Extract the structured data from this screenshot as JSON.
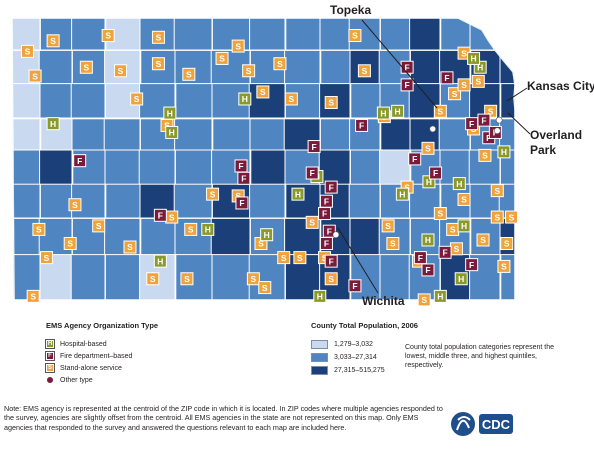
{
  "map": {
    "colors": {
      "low": "#c9daf0",
      "mid": "#4f86c2",
      "high": "#1b3f78",
      "border": "#ffffff",
      "hospital": "#8a9a2a",
      "fire": "#7b1b3c",
      "standalone": "#f0a33c",
      "other": "#7b1b3c"
    },
    "cities": {
      "topeka": "Topeka",
      "kansas_city": "Kansas City",
      "overland_park": "Overland Park",
      "wichita": "Wichita"
    },
    "markers": [
      {
        "t": "S",
        "lx": 10,
        "ly": 11
      },
      {
        "t": "S",
        "lx": 18,
        "ly": 25
      },
      {
        "t": "S",
        "lx": 37,
        "ly": 5
      },
      {
        "t": "S",
        "lx": 72,
        "ly": 20
      },
      {
        "t": "S",
        "lx": 95,
        "ly": 2
      },
      {
        "t": "S",
        "lx": 108,
        "ly": 22
      },
      {
        "t": "S",
        "lx": 148,
        "ly": 3
      },
      {
        "t": "S",
        "lx": 148,
        "ly": 18
      },
      {
        "t": "S",
        "lx": 125,
        "ly": 38
      },
      {
        "t": "S",
        "lx": 157,
        "ly": 53
      },
      {
        "t": "S",
        "lx": 180,
        "ly": 24
      },
      {
        "t": "S",
        "lx": 215,
        "ly": 15
      },
      {
        "t": "S",
        "lx": 232,
        "ly": 8
      },
      {
        "t": "S",
        "lx": 243,
        "ly": 22
      },
      {
        "t": "S",
        "lx": 258,
        "ly": 34
      },
      {
        "t": "S",
        "lx": 276,
        "ly": 18
      },
      {
        "t": "S",
        "lx": 288,
        "ly": 38
      },
      {
        "t": "S",
        "lx": 330,
        "ly": 40
      },
      {
        "t": "S",
        "lx": 355,
        "ly": 2
      },
      {
        "t": "S",
        "lx": 365,
        "ly": 22
      },
      {
        "t": "S",
        "lx": 386,
        "ly": 48
      },
      {
        "t": "S",
        "lx": 460,
        "ly": 35
      },
      {
        "t": "S",
        "lx": 470,
        "ly": 12
      },
      {
        "t": "S",
        "lx": 470,
        "ly": 30
      },
      {
        "t": "S",
        "lx": 432,
        "ly": 66
      },
      {
        "t": "S",
        "lx": 480,
        "ly": 55
      },
      {
        "t": "S",
        "lx": 492,
        "ly": 70
      },
      {
        "t": "S",
        "lx": 505,
        "ly": 90
      },
      {
        "t": "S",
        "lx": 505,
        "ly": 105
      },
      {
        "t": "S",
        "lx": 470,
        "ly": 95
      },
      {
        "t": "S",
        "lx": 458,
        "ly": 112
      },
      {
        "t": "S",
        "lx": 410,
        "ly": 88
      },
      {
        "t": "S",
        "lx": 445,
        "ly": 45
      },
      {
        "t": "S",
        "lx": 498,
        "ly": 45
      },
      {
        "t": "S",
        "lx": 485,
        "ly": 28
      },
      {
        "t": "S",
        "lx": 520,
        "ly": 105
      },
      {
        "t": "S",
        "lx": 515,
        "ly": 120
      },
      {
        "t": "S",
        "lx": 60,
        "ly": 98
      },
      {
        "t": "S",
        "lx": 85,
        "ly": 110
      },
      {
        "t": "S",
        "lx": 22,
        "ly": 112
      },
      {
        "t": "S",
        "lx": 30,
        "ly": 128
      },
      {
        "t": "S",
        "lx": 55,
        "ly": 120
      },
      {
        "t": "S",
        "lx": 118,
        "ly": 122
      },
      {
        "t": "S",
        "lx": 142,
        "ly": 140
      },
      {
        "t": "S",
        "lx": 162,
        "ly": 105
      },
      {
        "t": "S",
        "lx": 182,
        "ly": 112
      },
      {
        "t": "S",
        "lx": 205,
        "ly": 92
      },
      {
        "t": "S",
        "lx": 232,
        "ly": 93
      },
      {
        "t": "S",
        "lx": 256,
        "ly": 120
      },
      {
        "t": "S",
        "lx": 248,
        "ly": 140
      },
      {
        "t": "S",
        "lx": 280,
        "ly": 128
      },
      {
        "t": "S",
        "lx": 297,
        "ly": 128
      },
      {
        "t": "S",
        "lx": 310,
        "ly": 108
      },
      {
        "t": "S",
        "lx": 323,
        "ly": 128
      },
      {
        "t": "S",
        "lx": 330,
        "ly": 140
      },
      {
        "t": "S",
        "lx": 390,
        "ly": 110
      },
      {
        "t": "S",
        "lx": 422,
        "ly": 130
      },
      {
        "t": "S",
        "lx": 445,
        "ly": 103
      },
      {
        "t": "S",
        "lx": 462,
        "ly": 123
      },
      {
        "t": "S",
        "lx": 490,
        "ly": 118
      },
      {
        "t": "S",
        "lx": 512,
        "ly": 133
      },
      {
        "t": "S",
        "lx": 16,
        "ly": 150
      },
      {
        "t": "S",
        "lx": 178,
        "ly": 140
      },
      {
        "t": "S",
        "lx": 260,
        "ly": 145
      },
      {
        "t": "S",
        "lx": 395,
        "ly": 120
      },
      {
        "t": "S",
        "lx": 428,
        "ly": 152
      },
      {
        "t": "H",
        "lx": 37,
        "ly": 52
      },
      {
        "t": "H",
        "lx": 160,
        "ly": 46
      },
      {
        "t": "H",
        "lx": 162,
        "ly": 57
      },
      {
        "t": "H",
        "lx": 239,
        "ly": 38
      },
      {
        "t": "H",
        "lx": 262,
        "ly": 115
      },
      {
        "t": "H",
        "lx": 295,
        "ly": 92
      },
      {
        "t": "H",
        "lx": 315,
        "ly": 82
      },
      {
        "t": "H",
        "lx": 200,
        "ly": 112
      },
      {
        "t": "H",
        "lx": 385,
        "ly": 46
      },
      {
        "t": "H",
        "lx": 400,
        "ly": 45
      },
      {
        "t": "H",
        "lx": 433,
        "ly": 85
      },
      {
        "t": "H",
        "lx": 465,
        "ly": 86
      },
      {
        "t": "H",
        "lx": 487,
        "ly": 20
      },
      {
        "t": "H",
        "lx": 480,
        "ly": 15
      },
      {
        "t": "H",
        "lx": 512,
        "ly": 68
      },
      {
        "t": "H",
        "lx": 432,
        "ly": 118
      },
      {
        "t": "H",
        "lx": 467,
        "ly": 140
      },
      {
        "t": "H",
        "lx": 150,
        "ly": 130
      },
      {
        "t": "H",
        "lx": 318,
        "ly": 150
      },
      {
        "t": "H",
        "lx": 445,
        "ly": 150
      },
      {
        "t": "H",
        "lx": 405,
        "ly": 92
      },
      {
        "t": "H",
        "lx": 470,
        "ly": 110
      },
      {
        "t": "F",
        "lx": 65,
        "ly": 73
      },
      {
        "t": "F",
        "lx": 150,
        "ly": 104
      },
      {
        "t": "F",
        "lx": 238,
        "ly": 83
      },
      {
        "t": "F",
        "lx": 312,
        "ly": 65
      },
      {
        "t": "F",
        "lx": 310,
        "ly": 80
      },
      {
        "t": "F",
        "lx": 325,
        "ly": 96
      },
      {
        "t": "F",
        "lx": 323,
        "ly": 103
      },
      {
        "t": "F",
        "lx": 328,
        "ly": 113
      },
      {
        "t": "F",
        "lx": 325,
        "ly": 120
      },
      {
        "t": "F",
        "lx": 330,
        "ly": 130
      },
      {
        "t": "F",
        "lx": 355,
        "ly": 144
      },
      {
        "t": "F",
        "lx": 330,
        "ly": 88
      },
      {
        "t": "F",
        "lx": 362,
        "ly": 53
      },
      {
        "t": "F",
        "lx": 410,
        "ly": 20
      },
      {
        "t": "F",
        "lx": 418,
        "ly": 72
      },
      {
        "t": "F",
        "lx": 440,
        "ly": 80
      },
      {
        "t": "F",
        "lx": 478,
        "ly": 52
      },
      {
        "t": "F",
        "lx": 491,
        "ly": 50
      },
      {
        "t": "F",
        "lx": 496,
        "ly": 60
      },
      {
        "t": "F",
        "lx": 503,
        "ly": 57
      },
      {
        "t": "F",
        "lx": 452,
        "ly": 26
      },
      {
        "t": "F",
        "lx": 432,
        "ly": 135
      },
      {
        "t": "F",
        "lx": 450,
        "ly": 125
      },
      {
        "t": "F",
        "lx": 478,
        "ly": 132
      },
      {
        "t": "F",
        "lx": 410,
        "ly": 30
      },
      {
        "t": "F",
        "lx": 424,
        "ly": 128
      },
      {
        "t": "F",
        "lx": 235,
        "ly": 76
      },
      {
        "t": "F",
        "lx": 236,
        "ly": 97
      },
      {
        "t": "O",
        "lx": 437,
        "ly": 55
      },
      {
        "t": "O",
        "lx": 507,
        "ly": 50
      },
      {
        "t": "O",
        "lx": 505,
        "ly": 56
      },
      {
        "t": "O",
        "lx": 335,
        "ly": 115
      }
    ]
  },
  "legend": {
    "agency_title": "EMS Agency Organization Type",
    "agency_items": [
      {
        "glyph": "H",
        "label": "Hospital-based"
      },
      {
        "glyph": "F",
        "label": "Fire department–based"
      },
      {
        "glyph": "S",
        "label": "Stand-alone service"
      },
      {
        "glyph": "",
        "label": "Other type"
      }
    ],
    "pop_title": "County Total Population, 2006",
    "pop_items": [
      {
        "label": "1,279–3,032"
      },
      {
        "label": "3,033–27,314"
      },
      {
        "label": "27,315–515,275"
      }
    ],
    "pop_note": "County total population categories represent the lowest, middle three, and highest quintiles, respectively."
  },
  "note": "Note: EMS agency is represented at the centroid of the ZIP code in which it is located. In ZIP codes where multiple agencies responded to the survey, agencies are slightly offset from the centroid. All EMS agencies in the state are not represented on this map. Only EMS agencies that responded to the survey and answered the questions relevant to each map are included here.",
  "logo": {
    "text": "CDC"
  }
}
